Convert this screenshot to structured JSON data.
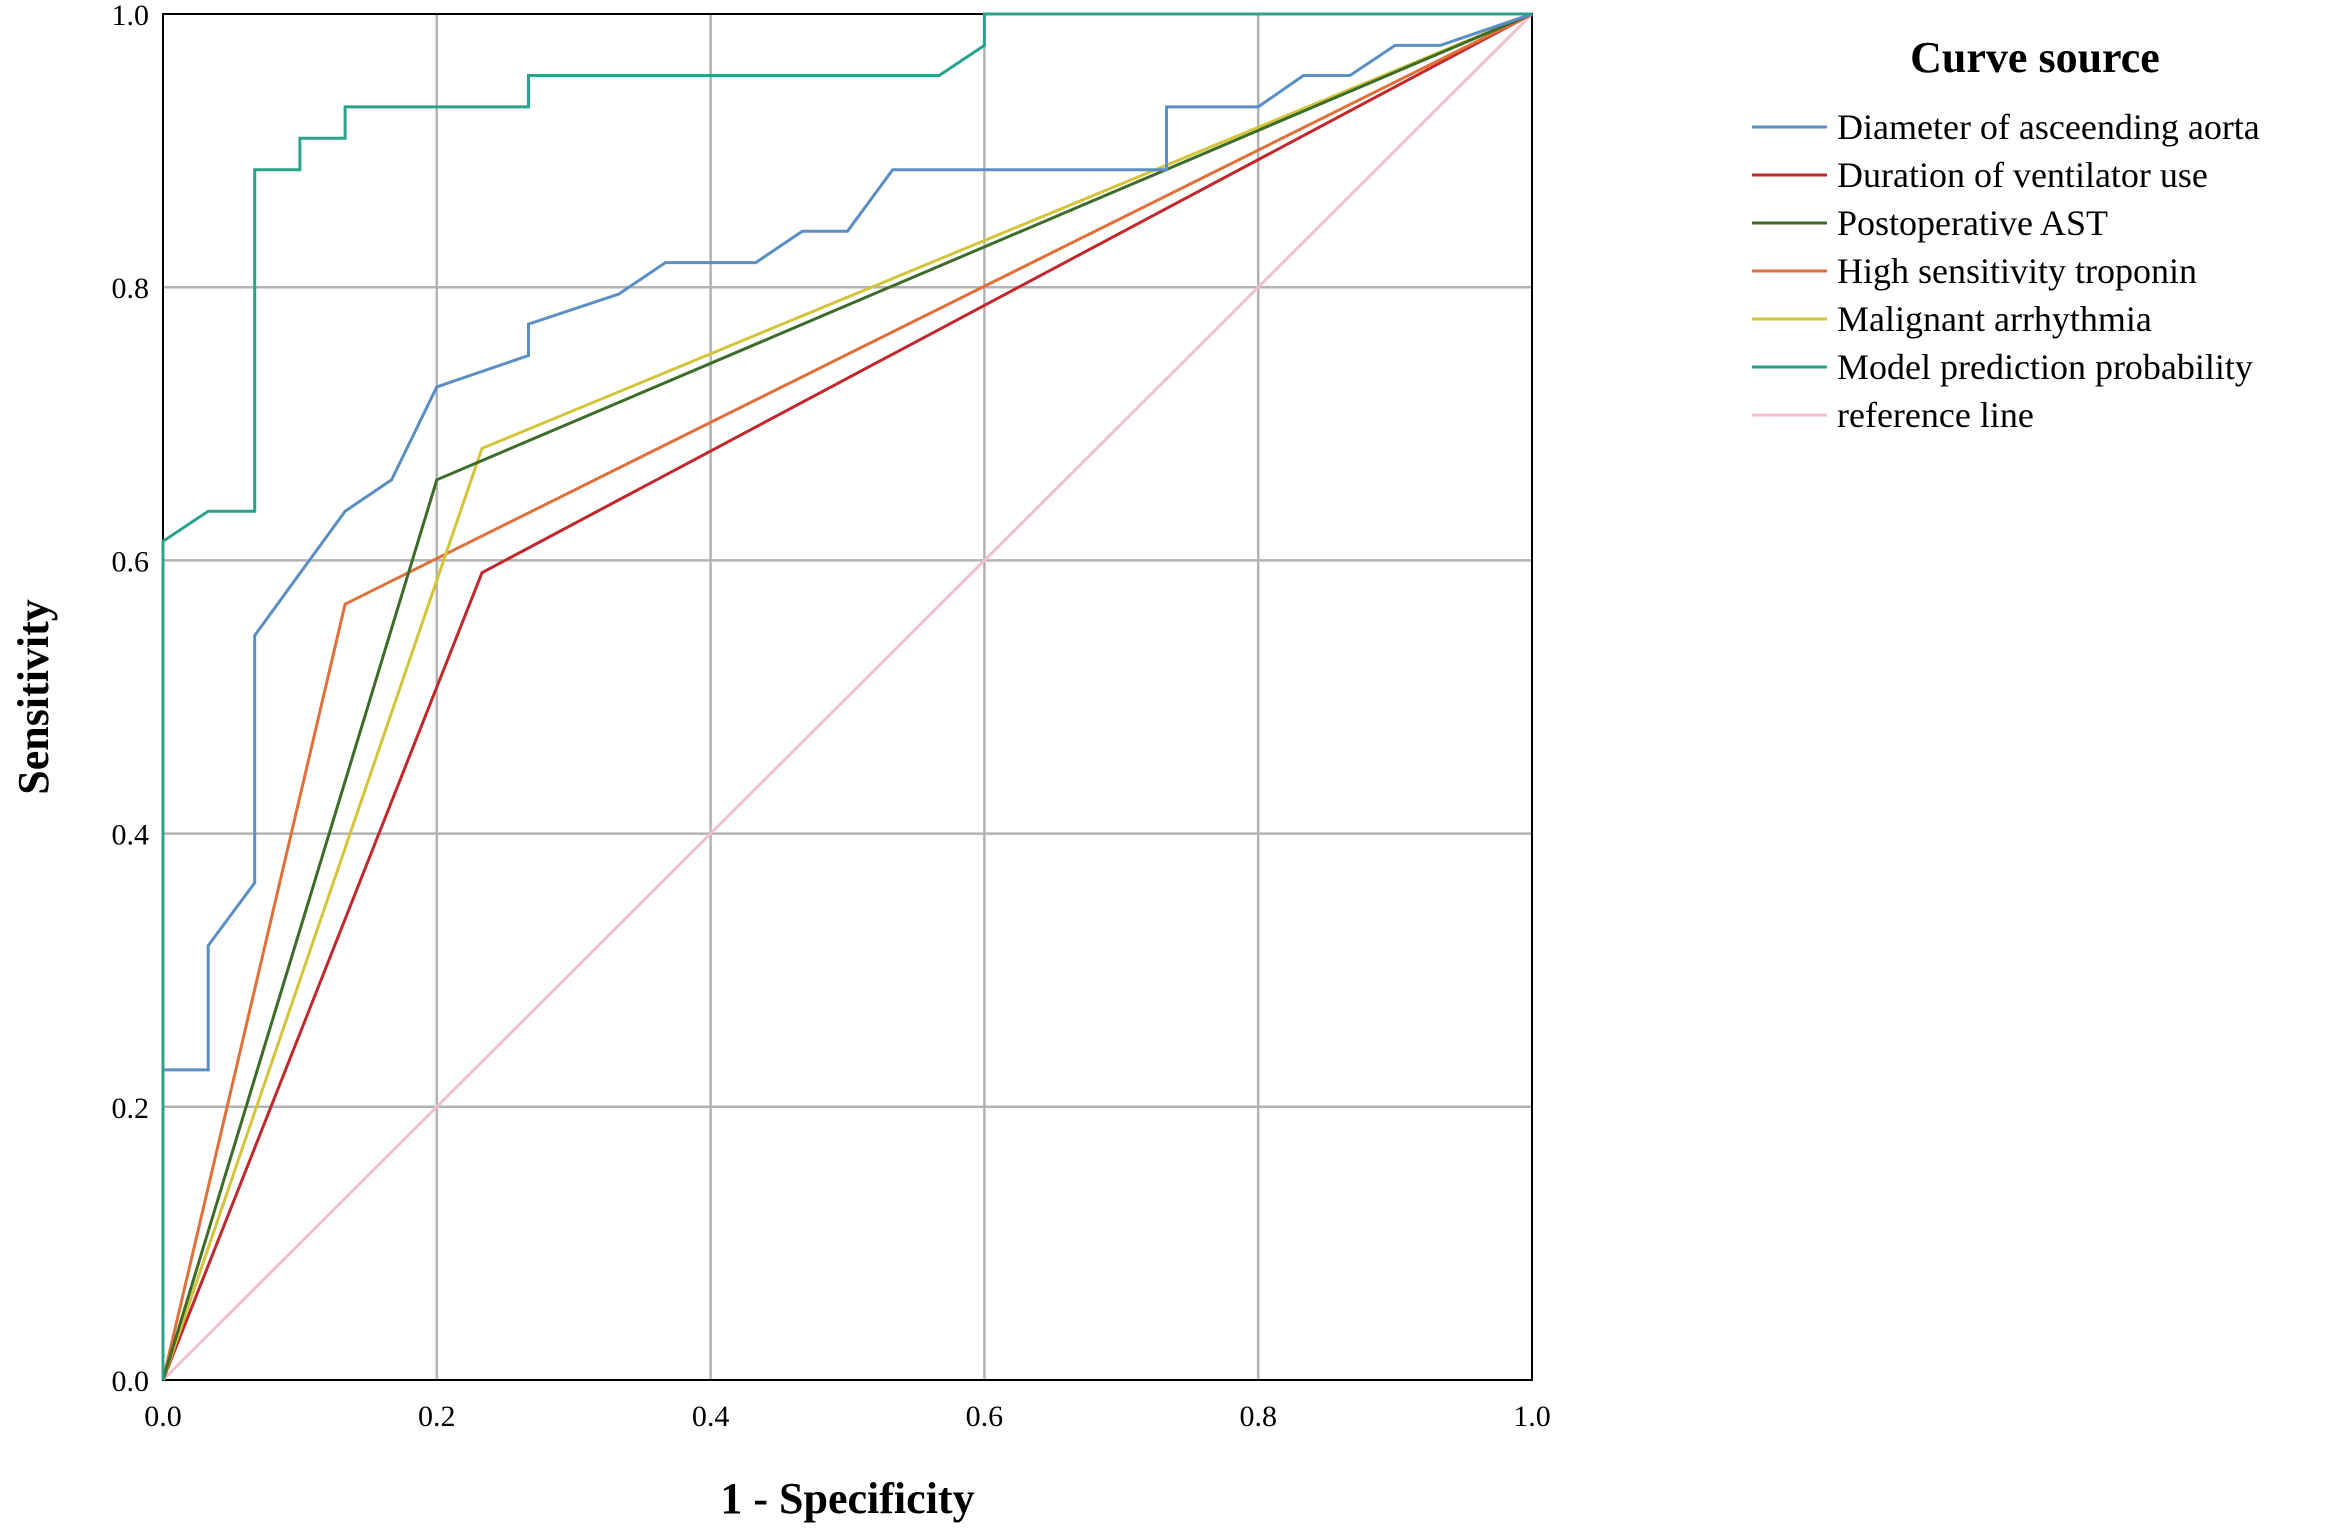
{
  "chart_data": {
    "type": "line",
    "title": "",
    "xlabel": "1 - Specificity",
    "ylabel": "Sensitivity",
    "xlim": [
      0,
      1
    ],
    "ylim": [
      0,
      1
    ],
    "xticks": [
      "0.0",
      "0.2",
      "0.4",
      "0.6",
      "0.8",
      "1.0"
    ],
    "yticks": [
      "0.0",
      "0.2",
      "0.4",
      "0.6",
      "0.8",
      "1.0"
    ],
    "grid": true,
    "legend_title": "Curve source",
    "legend_position": "right",
    "series": [
      {
        "name": "Diameter of asceending aorta",
        "color": "#5b8fc4",
        "x": [
          0,
          0,
          0.033,
          0.033,
          0.067,
          0.067,
          0.133,
          0.167,
          0.2,
          0.267,
          0.267,
          0.333,
          0.367,
          0.433,
          0.467,
          0.5,
          0.533,
          0.733,
          0.733,
          0.8,
          0.833,
          0.867,
          0.9,
          0.933,
          1.0
        ],
        "y": [
          0,
          0.227,
          0.227,
          0.318,
          0.364,
          0.545,
          0.636,
          0.659,
          0.727,
          0.75,
          0.773,
          0.795,
          0.818,
          0.818,
          0.841,
          0.841,
          0.886,
          0.886,
          0.932,
          0.932,
          0.955,
          0.955,
          0.977,
          0.977,
          1.0
        ]
      },
      {
        "name": "Duration of ventilator use",
        "color": "#c0282d",
        "x": [
          0,
          0.233,
          1.0
        ],
        "y": [
          0,
          0.591,
          1.0
        ]
      },
      {
        "name": "Postoperative AST",
        "color": "#3d6b2a",
        "x": [
          0,
          0.2,
          1.0
        ],
        "y": [
          0,
          0.659,
          1.0
        ]
      },
      {
        "name": "High sensitivity troponin",
        "color": "#e0703a",
        "x": [
          0,
          0.133,
          1.0
        ],
        "y": [
          0,
          0.568,
          1.0
        ]
      },
      {
        "name": "Malignant arrhythmia",
        "color": "#d3c53a",
        "x": [
          0,
          0.233,
          1.0
        ],
        "y": [
          0,
          0.682,
          1.0
        ]
      },
      {
        "name": "Model prediction probability",
        "color": "#2aa38d",
        "x": [
          0,
          0,
          0.033,
          0.067,
          0.067,
          0.1,
          0.1,
          0.133,
          0.133,
          0.267,
          0.267,
          0.567,
          0.6,
          0.6,
          1.0
        ],
        "y": [
          0,
          0.614,
          0.636,
          0.636,
          0.886,
          0.886,
          0.909,
          0.909,
          0.932,
          0.932,
          0.955,
          0.955,
          0.977,
          1.0,
          1.0
        ]
      },
      {
        "name": "reference line",
        "color": "#f2c0cc",
        "x": [
          0,
          1.0
        ],
        "y": [
          0,
          1.0
        ]
      }
    ]
  }
}
